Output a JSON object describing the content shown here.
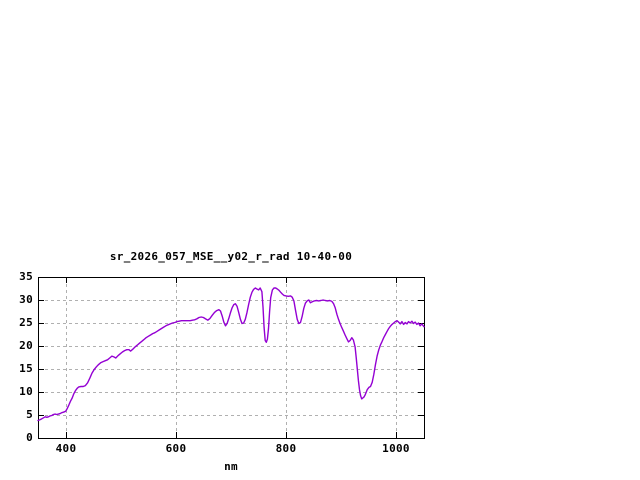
{
  "window": {
    "background_color": "#ffffff"
  },
  "chart_data": {
    "type": "line",
    "title": "sr_2026_057_MSE__y02_r_rad 10-40-00",
    "xlabel": "nm",
    "ylabel": "",
    "xlim": [
      350,
      1050
    ],
    "ylim": [
      0,
      35
    ],
    "x_ticks": [
      400,
      600,
      800,
      1000
    ],
    "y_ticks": [
      0,
      5,
      10,
      15,
      20,
      25,
      30,
      35
    ],
    "grid": true,
    "grid_style": "dashed",
    "legend_position": "none",
    "line_color": "#9400d3",
    "grid_color": "#b0b0b0",
    "frame_color": "#000000",
    "text_color": "#000000",
    "series": [
      {
        "name": "sr_2026_057_MSE__y02_r_rad",
        "x": [
          350,
          354,
          357,
          360,
          363,
          366,
          369,
          372,
          375,
          378,
          381,
          384,
          387,
          390,
          393,
          396,
          400,
          403,
          406,
          409,
          412,
          415,
          418,
          421,
          424,
          428,
          432,
          436,
          440,
          444,
          448,
          452,
          456,
          460,
          464,
          468,
          472,
          476,
          480,
          484,
          488,
          491,
          495,
          499,
          503,
          507,
          511,
          515,
          518,
          522,
          526,
          530,
          534,
          538,
          542,
          546,
          550,
          554,
          558,
          562,
          566,
          570,
          574,
          578,
          582,
          586,
          590,
          594,
          598,
          602,
          606,
          610,
          614,
          618,
          622,
          626,
          630,
          634,
          638,
          642,
          646,
          650,
          654,
          658,
          662,
          666,
          670,
          674,
          678,
          681,
          684,
          687,
          690,
          693,
          696,
          699,
          702,
          705,
          708,
          711,
          714,
          717,
          720,
          723,
          726,
          729,
          732,
          735,
          738,
          741,
          744,
          747,
          750,
          753,
          756,
          758,
          760,
          762,
          764,
          766,
          768,
          770,
          772,
          775,
          778,
          781,
          784,
          787,
          790,
          793,
          796,
          800,
          804,
          808,
          811,
          814,
          817,
          820,
          823,
          826,
          829,
          832,
          835,
          838,
          841,
          844,
          847,
          851,
          855,
          859,
          863,
          867,
          871,
          875,
          879,
          883,
          886,
          889,
          892,
          895,
          898,
          901,
          904,
          907,
          910,
          913,
          916,
          919,
          922,
          925,
          927,
          929,
          931,
          933,
          935,
          937,
          939,
          941,
          943,
          945,
          947,
          950,
          953,
          956,
          959,
          962,
          965,
          968,
          971,
          974,
          977,
          980,
          983,
          986,
          989,
          992,
          995,
          998,
          1001,
          1004,
          1007,
          1010,
          1013,
          1016,
          1019,
          1022,
          1025,
          1028,
          1031,
          1034,
          1037,
          1040,
          1043,
          1046,
          1050
        ],
        "y": [
          3.8,
          4.0,
          4.2,
          4.4,
          4.6,
          4.5,
          4.6,
          4.8,
          4.9,
          5.1,
          5.2,
          5.1,
          5.2,
          5.3,
          5.5,
          5.6,
          5.8,
          6.4,
          7.2,
          8.0,
          8.7,
          9.6,
          10.3,
          10.8,
          11.1,
          11.2,
          11.2,
          11.4,
          12.0,
          13.0,
          14.1,
          14.9,
          15.5,
          16.0,
          16.4,
          16.6,
          16.8,
          17.0,
          17.4,
          17.8,
          17.6,
          17.4,
          17.9,
          18.3,
          18.7,
          19.0,
          19.2,
          19.2,
          18.9,
          19.3,
          19.8,
          20.2,
          20.6,
          21.0,
          21.4,
          21.8,
          22.1,
          22.4,
          22.7,
          22.9,
          23.2,
          23.5,
          23.8,
          24.1,
          24.4,
          24.6,
          24.8,
          25.0,
          25.1,
          25.3,
          25.4,
          25.5,
          25.5,
          25.5,
          25.5,
          25.5,
          25.6,
          25.7,
          25.9,
          26.2,
          26.3,
          26.2,
          25.9,
          25.6,
          26.0,
          26.7,
          27.3,
          27.7,
          27.9,
          27.6,
          26.5,
          25.2,
          24.4,
          24.9,
          26.0,
          27.2,
          28.3,
          29.0,
          29.2,
          28.6,
          27.3,
          25.8,
          24.9,
          25.0,
          25.8,
          27.3,
          29.0,
          30.6,
          31.7,
          32.3,
          32.6,
          32.4,
          32.2,
          32.6,
          31.8,
          28.5,
          24.0,
          21.2,
          20.8,
          21.5,
          23.8,
          27.5,
          30.5,
          32.2,
          32.6,
          32.6,
          32.4,
          32.1,
          31.7,
          31.3,
          31.0,
          30.9,
          30.8,
          30.9,
          30.6,
          29.8,
          27.8,
          25.8,
          24.9,
          25.1,
          26.4,
          28.2,
          29.3,
          29.8,
          30.0,
          29.4,
          29.6,
          29.8,
          29.9,
          29.8,
          29.9,
          30.0,
          29.9,
          29.8,
          29.9,
          29.7,
          29.2,
          28.3,
          26.9,
          25.8,
          24.8,
          24.0,
          23.2,
          22.4,
          21.6,
          20.9,
          21.2,
          21.8,
          21.3,
          19.8,
          17.5,
          15.0,
          12.5,
          10.5,
          9.2,
          8.5,
          8.7,
          8.9,
          9.3,
          9.9,
          10.5,
          11.0,
          11.2,
          12.1,
          13.8,
          16.0,
          17.8,
          19.2,
          20.2,
          21.0,
          21.8,
          22.5,
          23.2,
          23.8,
          24.3,
          24.7,
          25.0,
          25.3,
          25.5,
          25.2,
          24.8,
          25.3,
          24.7,
          25.1,
          24.8,
          25.3,
          25.0,
          25.4,
          24.9,
          25.2,
          24.7,
          25.0,
          24.4,
          24.8,
          24.2
        ]
      }
    ]
  }
}
